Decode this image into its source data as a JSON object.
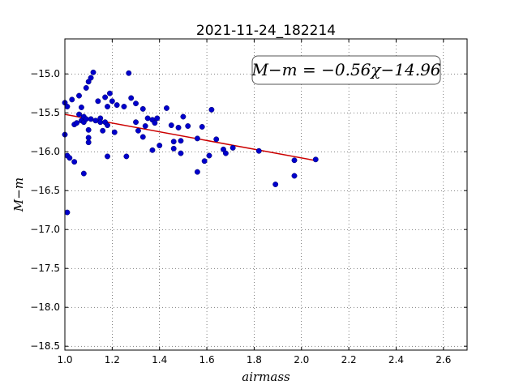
{
  "chart_data": {
    "type": "scatter",
    "title": "2021-11-24_182214",
    "xlabel": "airmass",
    "ylabel": "M−m",
    "xlim": [
      1.0,
      2.7
    ],
    "ylim": [
      -18.55,
      -14.55
    ],
    "y_inverted": true,
    "grid": true,
    "x_ticks": [
      "1.0",
      "1.2",
      "1.4",
      "1.6",
      "1.8",
      "2.0",
      "2.2",
      "2.4",
      "2.6"
    ],
    "y_ticks": [
      "−15.0",
      "−15.5",
      "−16.0",
      "−16.5",
      "−17.0",
      "−17.5",
      "−18.0",
      "−18.5"
    ],
    "annotation": "M−m = −0.56χ−14.96",
    "fit_line": {
      "slope": -0.56,
      "intercept": -14.96,
      "x_range": [
        1.0,
        2.06
      ],
      "color": "#cc0000"
    },
    "point_color": "#0000cc",
    "series": [
      {
        "points": [
          [
            1.0,
            -15.78
          ],
          [
            1.0,
            -15.37
          ],
          [
            1.01,
            -15.42
          ],
          [
            1.01,
            -16.05
          ],
          [
            1.01,
            -16.78
          ],
          [
            1.02,
            -16.08
          ],
          [
            1.03,
            -15.33
          ],
          [
            1.04,
            -16.13
          ],
          [
            1.04,
            -15.65
          ],
          [
            1.05,
            -15.63
          ],
          [
            1.06,
            -15.28
          ],
          [
            1.06,
            -15.52
          ],
          [
            1.07,
            -15.43
          ],
          [
            1.07,
            -15.6
          ],
          [
            1.08,
            -15.55
          ],
          [
            1.08,
            -15.62
          ],
          [
            1.08,
            -16.28
          ],
          [
            1.09,
            -15.58
          ],
          [
            1.09,
            -15.18
          ],
          [
            1.1,
            -15.72
          ],
          [
            1.1,
            -15.88
          ],
          [
            1.1,
            -15.82
          ],
          [
            1.1,
            -15.1
          ],
          [
            1.11,
            -15.05
          ],
          [
            1.11,
            -15.58
          ],
          [
            1.12,
            -14.98
          ],
          [
            1.13,
            -15.6
          ],
          [
            1.14,
            -15.35
          ],
          [
            1.15,
            -15.57
          ],
          [
            1.15,
            -15.62
          ],
          [
            1.16,
            -15.73
          ],
          [
            1.17,
            -15.3
          ],
          [
            1.17,
            -15.62
          ],
          [
            1.18,
            -15.42
          ],
          [
            1.18,
            -15.66
          ],
          [
            1.18,
            -16.06
          ],
          [
            1.19,
            -15.25
          ],
          [
            1.2,
            -15.35
          ],
          [
            1.21,
            -15.75
          ],
          [
            1.22,
            -15.4
          ],
          [
            1.25,
            -15.42
          ],
          [
            1.26,
            -16.06
          ],
          [
            1.27,
            -14.99
          ],
          [
            1.28,
            -15.31
          ],
          [
            1.3,
            -15.38
          ],
          [
            1.3,
            -15.62
          ],
          [
            1.31,
            -15.73
          ],
          [
            1.33,
            -15.81
          ],
          [
            1.33,
            -15.45
          ],
          [
            1.34,
            -15.67
          ],
          [
            1.35,
            -15.57
          ],
          [
            1.37,
            -15.59
          ],
          [
            1.37,
            -15.98
          ],
          [
            1.38,
            -15.63
          ],
          [
            1.39,
            -15.57
          ],
          [
            1.4,
            -15.92
          ],
          [
            1.43,
            -15.44
          ],
          [
            1.45,
            -15.66
          ],
          [
            1.46,
            -15.87
          ],
          [
            1.46,
            -15.96
          ],
          [
            1.48,
            -15.69
          ],
          [
            1.49,
            -15.86
          ],
          [
            1.49,
            -16.02
          ],
          [
            1.5,
            -15.55
          ],
          [
            1.52,
            -15.67
          ],
          [
            1.56,
            -15.83
          ],
          [
            1.56,
            -16.26
          ],
          [
            1.58,
            -15.68
          ],
          [
            1.59,
            -16.12
          ],
          [
            1.61,
            -16.05
          ],
          [
            1.62,
            -15.46
          ],
          [
            1.64,
            -15.84
          ],
          [
            1.67,
            -15.97
          ],
          [
            1.68,
            -16.02
          ],
          [
            1.71,
            -15.95
          ],
          [
            1.82,
            -15.99
          ],
          [
            1.89,
            -16.42
          ],
          [
            1.97,
            -16.31
          ],
          [
            1.97,
            -16.11
          ],
          [
            2.06,
            -16.1
          ]
        ]
      }
    ]
  }
}
